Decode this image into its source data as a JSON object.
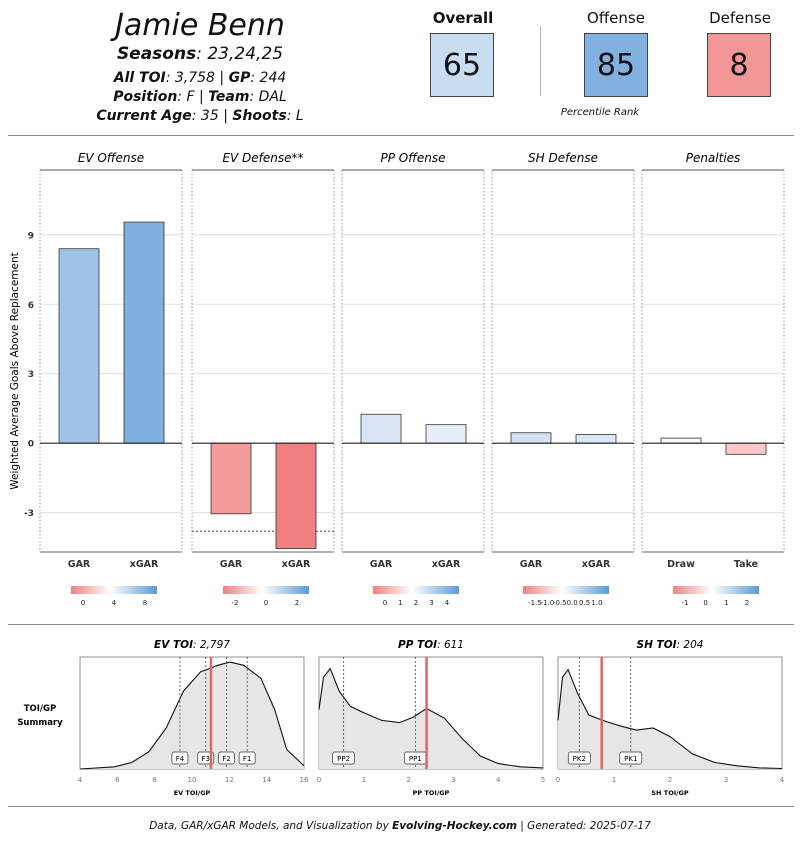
{
  "header": {
    "player_name": "Jamie Benn",
    "seasons_label": "Seasons",
    "seasons_value": "23,24,25",
    "toi_label": "All TOI",
    "toi_value": "3,758",
    "gp_label": "GP",
    "gp_value": "244",
    "position_label": "Position",
    "position_value": "F",
    "team_label": "Team",
    "team_value": "DAL",
    "age_label": "Current Age",
    "age_value": "35",
    "shoots_label": "Shoots",
    "shoots_value": "L"
  },
  "ranks": {
    "overall_label": "Overall",
    "overall_value": "65",
    "offense_label": "Offense",
    "offense_value": "85",
    "defense_label": "Defense",
    "defense_value": "8",
    "caption": "Percentile Rank",
    "colors": {
      "overall": "#c9ddf2",
      "offense": "#82b1df",
      "defense": "#f39696"
    }
  },
  "chart_data": [
    {
      "type": "bar",
      "ylabel": "Weighted Average Goals Above Replacement",
      "ylim": [
        -4.7,
        11.8
      ],
      "yticks": [
        -3,
        0,
        3,
        6,
        9
      ],
      "panels": [
        {
          "title": "EV Offense",
          "categories": [
            "GAR",
            "xGAR"
          ],
          "values": [
            8.4,
            9.55
          ],
          "legend_ticks": [
            "0",
            "4",
            "8"
          ],
          "colors": [
            "#9fc2e7",
            "#80b0de"
          ]
        },
        {
          "title": "EV Defense**",
          "categories": [
            "GAR",
            "xGAR"
          ],
          "values": [
            -3.05,
            -4.55
          ],
          "reference_line": -3.8,
          "legend_ticks": [
            "-2",
            "0",
            "2"
          ],
          "colors": [
            "#f49c9c",
            "#f07f80"
          ]
        },
        {
          "title": "PP Offense",
          "categories": [
            "GAR",
            "xGAR"
          ],
          "values": [
            1.25,
            0.8
          ],
          "legend_ticks": [
            "0",
            "1",
            "2",
            "3",
            "4"
          ],
          "colors": [
            "#d9e6f5",
            "#e6eef8"
          ]
        },
        {
          "title": "SH Defense",
          "categories": [
            "GAR",
            "xGAR"
          ],
          "values": [
            0.45,
            0.38
          ],
          "legend_ticks": [
            "-1.5",
            "-1.0",
            "-0.5",
            "0.0",
            "0.5",
            "1.0"
          ],
          "colors": [
            "#d3e2f3",
            "#d9e6f5"
          ]
        },
        {
          "title": "Penalties",
          "categories": [
            "Draw",
            "Take"
          ],
          "values": [
            0.22,
            -0.48
          ],
          "legend_ticks": [
            "-1",
            "0",
            "1",
            "2"
          ],
          "colors": [
            "#f8fafd",
            "#fbc9c9"
          ]
        }
      ]
    },
    {
      "type": "area",
      "row_label_1": "TOI/GP",
      "row_label_2": "Summary",
      "panels": [
        {
          "title_label": "EV TOI",
          "title_value": "2,797",
          "xlabel": "EV TOI/GP",
          "xlim": [
            4,
            17
          ],
          "xticks": [
            "4",
            "6",
            "8",
            "10",
            "12",
            "14",
            "16"
          ],
          "player_value": 11.6,
          "markers": [
            {
              "label": "F4",
              "x": 9.8
            },
            {
              "label": "F3",
              "x": 11.3
            },
            {
              "label": "F2",
              "x": 12.5
            },
            {
              "label": "F1",
              "x": 13.7
            }
          ],
          "density": [
            [
              4,
              0.0
            ],
            [
              6,
              0.02
            ],
            [
              7,
              0.06
            ],
            [
              8,
              0.16
            ],
            [
              9,
              0.38
            ],
            [
              10,
              0.72
            ],
            [
              11,
              0.9
            ],
            [
              11.5,
              0.93
            ],
            [
              12,
              0.96
            ],
            [
              12.7,
              0.99
            ],
            [
              13.5,
              0.96
            ],
            [
              14.5,
              0.84
            ],
            [
              15.3,
              0.55
            ],
            [
              16,
              0.18
            ],
            [
              17,
              0.03
            ]
          ]
        },
        {
          "title_label": "PP TOI",
          "title_value": "611",
          "xlabel": "PP TOI/GP",
          "xlim": [
            0,
            5
          ],
          "xticks": [
            "0",
            "1",
            "2",
            "3",
            "4",
            "5"
          ],
          "player_value": 2.4,
          "markers": [
            {
              "label": "PP2",
              "x": 0.55
            },
            {
              "label": "PP1",
              "x": 2.15
            }
          ],
          "density": [
            [
              0,
              0.55
            ],
            [
              0.1,
              0.85
            ],
            [
              0.25,
              0.93
            ],
            [
              0.45,
              0.72
            ],
            [
              0.7,
              0.58
            ],
            [
              1.0,
              0.52
            ],
            [
              1.4,
              0.45
            ],
            [
              1.8,
              0.43
            ],
            [
              2.1,
              0.48
            ],
            [
              2.4,
              0.56
            ],
            [
              2.8,
              0.47
            ],
            [
              3.2,
              0.28
            ],
            [
              3.6,
              0.12
            ],
            [
              4.0,
              0.05
            ],
            [
              4.5,
              0.02
            ],
            [
              5,
              0.01
            ]
          ]
        },
        {
          "title_label": "SH TOI",
          "title_value": "204",
          "xlabel": "SH TOI/GP",
          "xlim": [
            0,
            4
          ],
          "xticks": [
            "0",
            "1",
            "2",
            "3",
            "4"
          ],
          "player_value": 0.78,
          "markers": [
            {
              "label": "PK2",
              "x": 0.38
            },
            {
              "label": "PK1",
              "x": 1.3
            }
          ],
          "density": [
            [
              0,
              0.45
            ],
            [
              0.08,
              0.85
            ],
            [
              0.18,
              0.92
            ],
            [
              0.35,
              0.7
            ],
            [
              0.55,
              0.5
            ],
            [
              0.8,
              0.45
            ],
            [
              1.1,
              0.4
            ],
            [
              1.4,
              0.36
            ],
            [
              1.7,
              0.38
            ],
            [
              2.0,
              0.3
            ],
            [
              2.4,
              0.14
            ],
            [
              2.8,
              0.06
            ],
            [
              3.2,
              0.03
            ],
            [
              3.6,
              0.01
            ],
            [
              4,
              0.005
            ]
          ]
        }
      ]
    }
  ],
  "footer": {
    "prefix": "Data, GAR/xGAR Models, and Visualization by ",
    "brand": "Evolving-Hockey.com",
    "suffix": " | Generated: 2025-07-17"
  }
}
